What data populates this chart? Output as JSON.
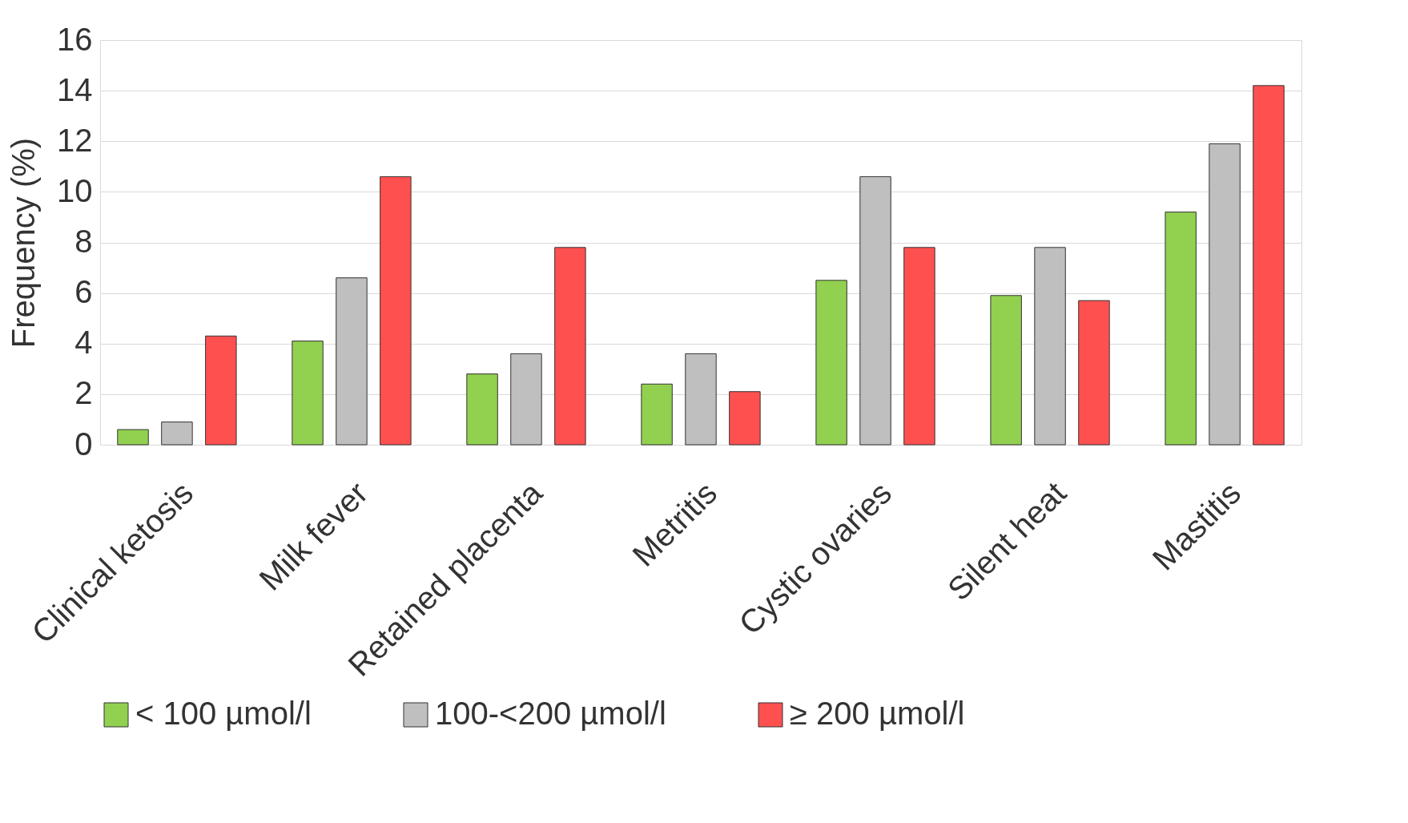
{
  "chart_data": {
    "type": "bar",
    "ylabel": "Frequency (%)",
    "categories": [
      "Clinical ketosis",
      "Milk fever",
      "Retained placenta",
      "Metritis",
      "Cystic ovaries",
      "Silent heat",
      "Mastitis"
    ],
    "series": [
      {
        "name": "< 100 µmol/l",
        "color": "#92d050",
        "values": [
          0.6,
          4.1,
          2.8,
          2.4,
          6.5,
          5.9,
          9.2
        ]
      },
      {
        "name": "100-<200 µmol/l",
        "color": "#bfbfbf",
        "values": [
          0.9,
          6.6,
          3.6,
          3.6,
          10.6,
          7.8,
          11.9
        ]
      },
      {
        "name": "≥ 200 µmol/l",
        "color": "#ff5050",
        "values": [
          4.3,
          10.6,
          7.8,
          2.1,
          7.8,
          5.7,
          14.2
        ]
      }
    ],
    "ylim": [
      0,
      16
    ],
    "yticks": [
      0,
      2,
      4,
      6,
      8,
      10,
      12,
      14,
      16
    ],
    "grid": "y",
    "legend": "bottom"
  }
}
